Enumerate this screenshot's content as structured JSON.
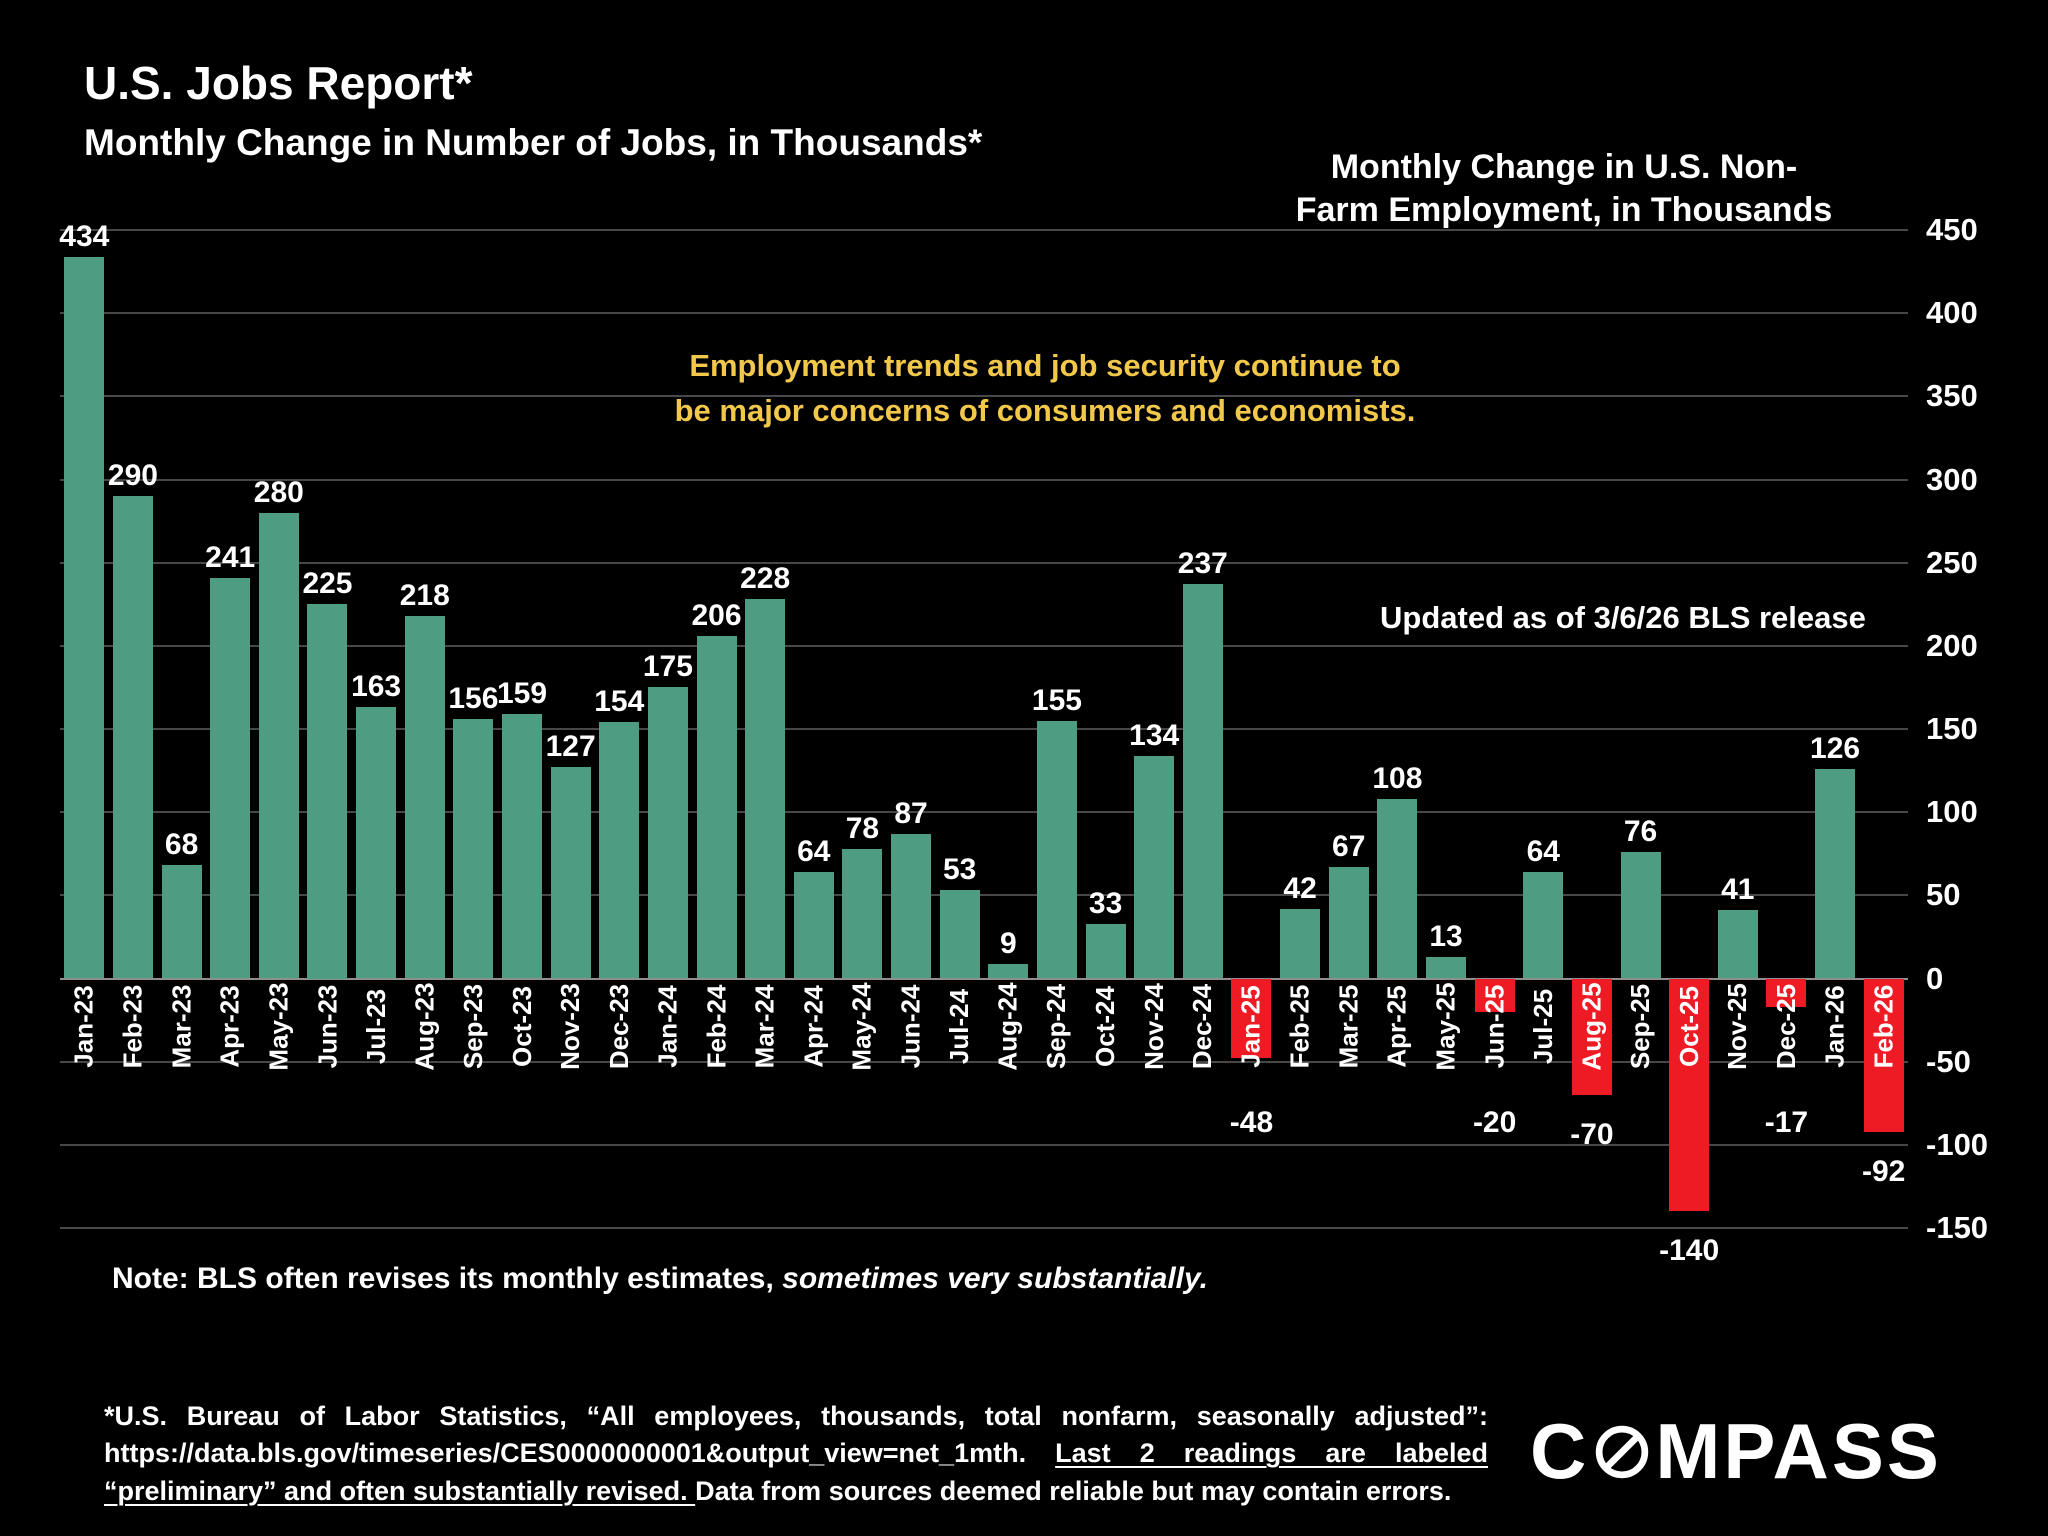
{
  "title": "U.S. Jobs Report*",
  "subtitle": "Monthly Change in Number of Jobs, in Thousands*",
  "right_title": "Monthly Change in U.S. Non-\nFarm Employment, in Thousands",
  "annotation": "Employment trends and job security continue to\nbe major concerns of consumers and economists.",
  "updated_note": "Updated as of 3/6/26 BLS release",
  "note": {
    "normal": "Note: BLS often revises its monthly estimates, ",
    "italic": "sometimes very substantially."
  },
  "footnote": {
    "part1": "*U.S. Bureau of Labor Statistics, “All employees, thousands, total nonfarm, seasonally adjusted”: https://data.bls.gov/timeseries/CES0000000001&output_view=net_1mth. ",
    "underlined": "Last 2 readings are labeled “preliminary” and often substantially revised. ",
    "part2": "Data from sources deemed reliable but may contain errors."
  },
  "logo": {
    "pre": "C",
    "post": "MPASS"
  },
  "colors": {
    "background": "#000000",
    "positive": "#4E9C82",
    "negative": "#EE1B24",
    "annotation": "#F2C84B",
    "gridline": "#474747",
    "text": "#FFFFFF"
  },
  "chart_data": {
    "type": "bar",
    "title": "Monthly Change in U.S. Non-Farm Employment, in Thousands",
    "xlabel": "",
    "ylabel": "Monthly change in jobs, thousands",
    "ylim": [
      -150,
      450
    ],
    "ytick_step": 50,
    "grid": true,
    "axis_side": "right",
    "categories": [
      "Jan-23",
      "Feb-23",
      "Mar-23",
      "Apr-23",
      "May-23",
      "Jun-23",
      "Jul-23",
      "Aug-23",
      "Sep-23",
      "Oct-23",
      "Nov-23",
      "Dec-23",
      "Jan-24",
      "Feb-24",
      "Mar-24",
      "Apr-24",
      "May-24",
      "Jun-24",
      "Jul-24",
      "Aug-24",
      "Sep-24",
      "Oct-24",
      "Nov-24",
      "Dec-24",
      "Jan-25",
      "Feb-25",
      "Mar-25",
      "Apr-25",
      "May-25",
      "Jun-25",
      "Jul-25",
      "Aug-25",
      "Sep-25",
      "Oct-25",
      "Nov-25",
      "Dec-25",
      "Jan-26",
      "Feb-26"
    ],
    "values": [
      434,
      290,
      68,
      241,
      280,
      225,
      163,
      218,
      156,
      159,
      127,
      154,
      175,
      206,
      228,
      64,
      78,
      87,
      53,
      9,
      155,
      33,
      134,
      237,
      -48,
      42,
      67,
      108,
      13,
      -20,
      64,
      -70,
      76,
      -140,
      41,
      -17,
      126,
      -92
    ],
    "negative_color_note": "negative months drawn in red, positive in green"
  }
}
